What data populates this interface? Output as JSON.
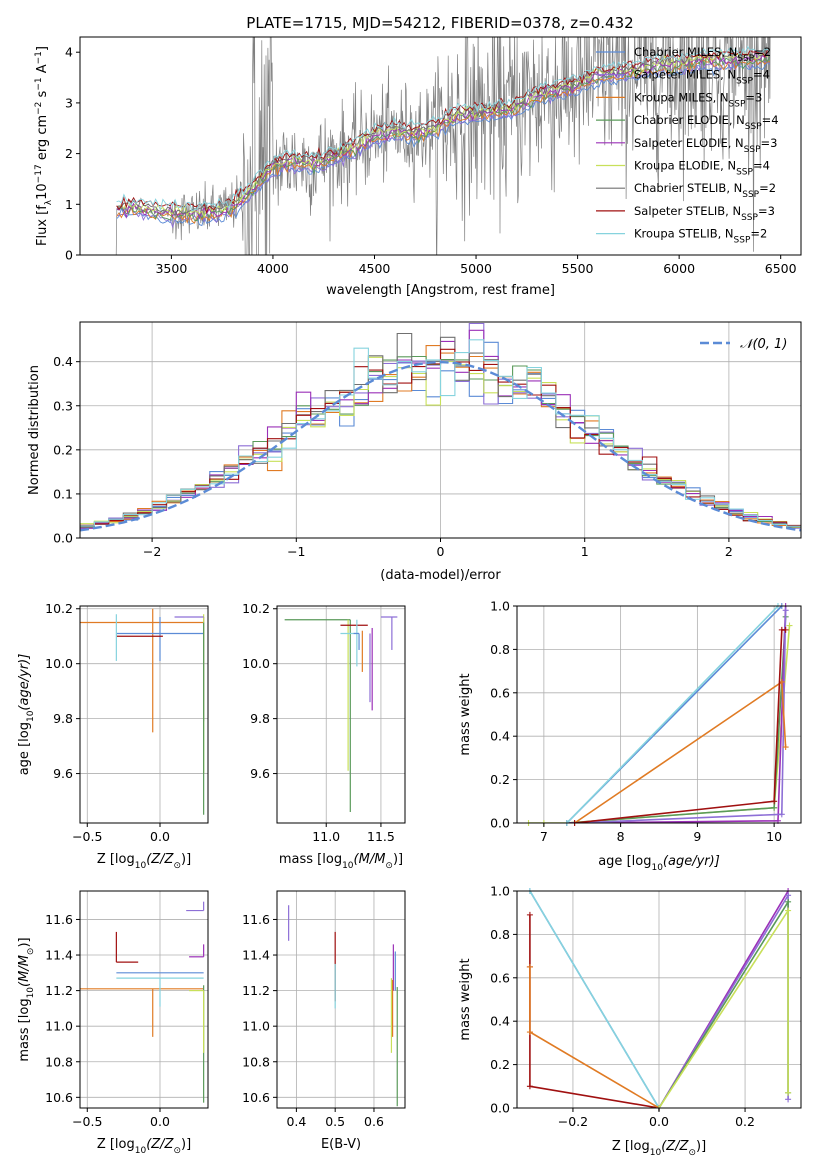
{
  "figure_title": "PLATE=1715, MJD=54212, FIBERID=0378, z=0.432",
  "colors": {
    "Chabrier MILES": "#5b8bd6",
    "Salpeter MILES": "#8d6fd6",
    "Kroupa MILES": "#e07b24",
    "Chabrier ELODIE": "#5a9a5a",
    "Salpeter ELODIE": "#9b30b8",
    "Kroupa ELODIE": "#c8e05a",
    "Chabrier STELIB": "#707070",
    "Salpeter STELIB": "#a01010",
    "Kroupa STELIB": "#86d3de",
    "data": "#808080",
    "normal": "#5b8bd6"
  },
  "chart_data": [
    {
      "id": "spectrum",
      "type": "line",
      "xlabel": "wavelength [Angstrom, rest frame]",
      "ylabel_parts": [
        "Flux [f",
        "λ",
        "10",
        "−17",
        " erg cm",
        "−2",
        " s",
        "−1",
        " A",
        "−1",
        "]"
      ],
      "xlim": [
        3050,
        6600
      ],
      "ylim": [
        0,
        4.3
      ],
      "xticks": [
        3500,
        4000,
        4500,
        5000,
        5500,
        6000,
        6500
      ],
      "yticks": [
        0,
        1,
        2,
        3,
        4
      ],
      "legend_position": "upper right",
      "legend": [
        {
          "model": "Chabrier MILES",
          "text": "Chabrier MILES, N",
          "sub": "SSP",
          "eq": "=2"
        },
        {
          "model": "Salpeter MILES",
          "text": "Salpeter MILES, N",
          "sub": "SSP",
          "eq": "=4"
        },
        {
          "model": "Kroupa MILES",
          "text": "Kroupa MILES, N",
          "sub": "SSP",
          "eq": "=3"
        },
        {
          "model": "Chabrier ELODIE",
          "text": "Chabrier ELODIE, N",
          "sub": "SSP",
          "eq": "=4"
        },
        {
          "model": "Salpeter ELODIE",
          "text": "Salpeter ELODIE, N",
          "sub": "SSP",
          "eq": "=3"
        },
        {
          "model": "Kroupa ELODIE",
          "text": "Kroupa ELODIE, N",
          "sub": "SSP",
          "eq": "=4"
        },
        {
          "model": "Chabrier STELIB",
          "text": "Chabrier STELIB, N",
          "sub": "SSP",
          "eq": "=2"
        },
        {
          "model": "Salpeter STELIB",
          "text": "Salpeter STELIB, N",
          "sub": "SSP",
          "eq": "=3"
        },
        {
          "model": "Kroupa STELIB",
          "text": "Kroupa STELIB, N",
          "sub": "SSP",
          "eq": "=2"
        }
      ],
      "continuum": {
        "x": [
          3230,
          3300,
          3400,
          3500,
          3600,
          3700,
          3800,
          3900,
          4000,
          4100,
          4200,
          4300,
          4400,
          4500,
          4600,
          4700,
          4800,
          4900,
          5000,
          5100,
          5200,
          5300,
          5400,
          5500,
          5600,
          5700,
          5800,
          5900,
          6000,
          6100,
          6200,
          6300,
          6400,
          6450
        ],
        "y": [
          0.9,
          0.95,
          0.88,
          0.82,
          0.8,
          0.85,
          0.95,
          1.3,
          1.75,
          1.85,
          1.8,
          1.95,
          2.1,
          2.35,
          2.45,
          2.4,
          2.5,
          2.75,
          2.8,
          2.85,
          2.9,
          3.15,
          3.25,
          3.35,
          3.55,
          3.6,
          3.65,
          3.75,
          3.75,
          3.85,
          3.85,
          3.85,
          3.9,
          3.9
        ]
      },
      "data_noise_onset": 3500
    },
    {
      "id": "residuals",
      "type": "histogram",
      "xlabel": "(data-model)/error",
      "ylabel": "Normed distribution",
      "xlim": [
        -2.5,
        2.5
      ],
      "ylim": [
        0,
        0.49
      ],
      "xticks": [
        -2,
        -1,
        0,
        1,
        2
      ],
      "yticks": [
        0.0,
        0.1,
        0.2,
        0.3,
        0.4
      ],
      "legend_position": "upper right",
      "legend_label": "𝒩(0, 1)",
      "bin_width": 0.1,
      "bin_start": -2.5,
      "bins": 50
    },
    {
      "id": "age_vs_Z",
      "type": "scatter",
      "xlabel_parts": [
        "Z [log",
        "10",
        "(Z/Z",
        "⊙",
        ")]"
      ],
      "ylabel_parts": [
        "age  [log",
        "10",
        "(age/yr)]"
      ],
      "xlim": [
        -0.55,
        0.33
      ],
      "ylim": [
        9.42,
        10.21
      ],
      "xticks": [
        -0.5,
        0.0
      ],
      "xticklabels": [
        "−0.5",
        "0.0"
      ],
      "yticks": [
        9.6,
        9.8,
        10.0,
        10.2
      ],
      "yticklabels": [
        "9.6",
        "9.8",
        "10.0",
        "10.2"
      ],
      "points": [
        {
          "model": "Kroupa MILES",
          "x": -0.05,
          "y": 10.15,
          "xerr": [
            0.5,
            0.35
          ],
          "yerr": [
            0.4,
            0.05
          ]
        },
        {
          "model": "Chabrier MILES",
          "x": 0.0,
          "y": 10.11,
          "xerr": [
            0.3,
            0.3
          ],
          "yerr": [
            0.1,
            0.06
          ]
        },
        {
          "model": "Salpeter STELIB",
          "x": -0.1,
          "y": 10.1,
          "xerr": [
            0.2,
            0.12
          ],
          "yerr": [
            0.0,
            0.0
          ]
        },
        {
          "model": "Kroupa STELIB",
          "x": -0.3,
          "y": 10.11,
          "xerr": [
            0.0,
            0.0
          ],
          "yerr": [
            0.1,
            0.07
          ]
        },
        {
          "model": "Salpeter ELODIE",
          "x": 0.3,
          "y": 10.14,
          "xerr": [
            0.0,
            0.0
          ],
          "yerr": [
            0.35,
            0.03
          ]
        },
        {
          "model": "Kroupa ELODIE",
          "x": 0.3,
          "y": 10.15,
          "xerr": [
            0.0,
            0.0
          ],
          "yerr": [
            0.55,
            0.03
          ]
        },
        {
          "model": "Chabrier ELODIE",
          "x": 0.3,
          "y": 10.1,
          "xerr": [
            0.0,
            0.0
          ],
          "yerr": [
            0.65,
            0.05
          ]
        },
        {
          "model": "Salpeter MILES",
          "x": 0.2,
          "y": 10.17,
          "xerr": [
            0.1,
            0.1
          ],
          "yerr": [
            0.0,
            0.0
          ]
        }
      ]
    },
    {
      "id": "age_vs_mass",
      "type": "scatter",
      "xlabel_parts": [
        "mass [log",
        "10",
        "(M/M",
        "⊙",
        ")]"
      ],
      "xlim": [
        10.55,
        11.72
      ],
      "ylim": [
        9.42,
        10.21
      ],
      "xticks": [
        11.0,
        11.5
      ],
      "xticklabels": [
        "11.0",
        "11.5"
      ],
      "yticks": [
        9.6,
        9.8,
        10.0,
        10.2
      ],
      "yticklabels": [
        "9.6",
        "9.8",
        "10.0",
        "10.2"
      ],
      "points": [
        {
          "model": "Chabrier ELODIE",
          "x": 11.22,
          "y": 10.16,
          "xerr": [
            0.6,
            0.0
          ],
          "yerr": [
            0.7,
            0.0
          ]
        },
        {
          "model": "Kroupa ELODIE",
          "x": 11.2,
          "y": 10.16,
          "xerr": [
            0.0,
            0.0
          ],
          "yerr": [
            0.55,
            0.0
          ]
        },
        {
          "model": "Salpeter STELIB",
          "x": 11.38,
          "y": 10.14,
          "xerr": [
            0.25,
            0.0
          ],
          "yerr": [
            0.0,
            0.0
          ]
        },
        {
          "model": "Kroupa STELIB",
          "x": 11.28,
          "y": 10.11,
          "xerr": [
            0.15,
            0.02
          ],
          "yerr": [
            0.12,
            0.05
          ]
        },
        {
          "model": "Salpeter ELODIE",
          "x": 11.42,
          "y": 10.13,
          "xerr": [
            0.0,
            0.0
          ],
          "yerr": [
            0.3,
            0.0
          ]
        },
        {
          "model": "Kroupa MILES",
          "x": 11.33,
          "y": 10.12,
          "xerr": [
            0.0,
            0.0
          ],
          "yerr": [
            0.15,
            0.0
          ]
        },
        {
          "model": "Salpeter MILES",
          "x": 11.4,
          "y": 10.11,
          "xerr": [
            0.0,
            0.0
          ],
          "yerr": [
            0.25,
            0.0
          ]
        },
        {
          "model": "Chabrier MILES",
          "x": 11.3,
          "y": 10.11,
          "xerr": [
            0.05,
            0.0
          ],
          "yerr": [
            0.06,
            0.0
          ]
        },
        {
          "model": "Salpeter MILES",
          "x": 11.6,
          "y": 10.17,
          "xerr": [
            0.1,
            0.05
          ],
          "yerr": [
            0.12,
            0.0
          ]
        }
      ]
    },
    {
      "id": "massweight_vs_age",
      "type": "line",
      "xlabel_parts": [
        "age  [log",
        "10",
        "(age/yr)]"
      ],
      "ylabel": "mass weight",
      "xlim": [
        6.65,
        10.35
      ],
      "ylim": [
        0,
        1.0
      ],
      "xticks": [
        7,
        8,
        9,
        10
      ],
      "yticks": [
        0.0,
        0.2,
        0.4,
        0.6,
        0.8,
        1.0
      ],
      "series": [
        {
          "model": "Kroupa ELODIE",
          "x": [
            6.8,
            7.0,
            7.3,
            10.0,
            10.2
          ],
          "y": [
            0.0,
            0.0,
            0.0,
            0.07,
            0.91
          ]
        },
        {
          "model": "Chabrier ELODIE",
          "x": [
            7.3,
            10.0,
            10.15
          ],
          "y": [
            0.0,
            0.07,
            0.95
          ]
        },
        {
          "model": "Salpeter ELODIE",
          "x": [
            7.3,
            10.05,
            10.15
          ],
          "y": [
            0.0,
            0.01,
            1.0
          ]
        },
        {
          "model": "Salpeter MILES",
          "x": [
            7.4,
            10.1,
            10.15
          ],
          "y": [
            0.0,
            0.04,
            0.98
          ]
        },
        {
          "model": "Kroupa MILES",
          "x": [
            7.4,
            10.1,
            10.15
          ],
          "y": [
            0.0,
            0.65,
            0.35
          ]
        },
        {
          "model": "Chabrier MILES",
          "x": [
            7.3,
            10.1
          ],
          "y": [
            0.0,
            1.0
          ]
        },
        {
          "model": "Kroupa STELIB",
          "x": [
            7.3,
            10.05
          ],
          "y": [
            0.0,
            1.0
          ]
        },
        {
          "model": "Salpeter STELIB",
          "x": [
            7.4,
            10.0,
            10.1,
            10.15
          ],
          "y": [
            0.0,
            0.1,
            0.89,
            0.89
          ]
        }
      ]
    },
    {
      "id": "mass_vs_Z",
      "type": "scatter",
      "xlabel_parts": [
        "Z [log",
        "10",
        "(Z/Z",
        "⊙",
        ")]"
      ],
      "ylabel_parts": [
        "mass [log",
        "10",
        "(M/M",
        "⊙",
        ")]"
      ],
      "xlim": [
        -0.55,
        0.33
      ],
      "ylim": [
        10.54,
        11.76
      ],
      "xticks": [
        -0.5,
        0.0
      ],
      "xticklabels": [
        "−0.5",
        "0.0"
      ],
      "yticks": [
        10.6,
        10.8,
        11.0,
        11.2,
        11.4,
        11.6
      ],
      "yticklabels": [
        "10.6",
        "10.8",
        "11.0",
        "11.2",
        "11.4",
        "11.6"
      ],
      "points": [
        {
          "model": "Kroupa MILES",
          "x": -0.05,
          "y": 11.21,
          "xerr": [
            0.5,
            0.35
          ],
          "yerr": [
            0.27,
            0.0
          ]
        },
        {
          "model": "Salpeter STELIB",
          "x": -0.3,
          "y": 11.36,
          "xerr": [
            0.0,
            0.15
          ],
          "yerr": [
            0.0,
            0.17
          ]
        },
        {
          "model": "Chabrier MILES",
          "x": 0.0,
          "y": 11.3,
          "xerr": [
            0.3,
            0.3
          ],
          "yerr": [
            0.0,
            0.0
          ]
        },
        {
          "model": "Kroupa STELIB",
          "x": 0.0,
          "y": 11.27,
          "xerr": [
            0.3,
            0.3
          ],
          "yerr": [
            0.16,
            0.0
          ]
        },
        {
          "model": "Chabrier ELODIE",
          "x": 0.3,
          "y": 11.23,
          "xerr": [
            0.0,
            0.0
          ],
          "yerr": [
            0.66,
            0.0
          ]
        },
        {
          "model": "Kroupa ELODIE",
          "x": 0.3,
          "y": 11.2,
          "xerr": [
            0.1,
            0.0
          ],
          "yerr": [
            0.35,
            0.0
          ]
        },
        {
          "model": "Salpeter ELODIE",
          "x": 0.3,
          "y": 11.39,
          "xerr": [
            0.1,
            0.0
          ],
          "yerr": [
            0.0,
            0.07
          ]
        },
        {
          "model": "Salpeter MILES",
          "x": 0.3,
          "y": 11.65,
          "xerr": [
            0.12,
            0.0
          ],
          "yerr": [
            0.0,
            0.05
          ]
        }
      ]
    },
    {
      "id": "mass_vs_EBV",
      "type": "scatter",
      "xlabel": "E(B-V)",
      "xlim": [
        0.35,
        0.68
      ],
      "ylim": [
        10.54,
        11.76
      ],
      "xticks": [
        0.4,
        0.5,
        0.6
      ],
      "xticklabels": [
        "0.4",
        "0.5",
        "0.6"
      ],
      "yticks": [
        10.6,
        10.8,
        11.0,
        11.2,
        11.4,
        11.6
      ],
      "yticklabels": [
        "10.6",
        "10.8",
        "11.0",
        "11.2",
        "11.4",
        "11.6"
      ],
      "points": [
        {
          "model": "Salpeter MILES",
          "x": 0.38,
          "y": 11.6,
          "yerr": [
            0.12,
            0.08
          ]
        },
        {
          "model": "Salpeter STELIB",
          "x": 0.5,
          "y": 11.36,
          "yerr": [
            0.22,
            0.17
          ]
        },
        {
          "model": "Kroupa STELIB",
          "x": 0.5,
          "y": 11.3,
          "yerr": [
            0.2,
            0.05
          ]
        },
        {
          "model": "Salpeter ELODIE",
          "x": 0.65,
          "y": 11.4,
          "yerr": [
            0.2,
            0.06
          ]
        },
        {
          "model": "Chabrier MILES",
          "x": 0.655,
          "y": 11.35,
          "yerr": [
            0.15,
            0.07
          ]
        },
        {
          "model": "Kroupa ELODIE",
          "x": 0.645,
          "y": 11.2,
          "yerr": [
            0.35,
            0.07
          ]
        },
        {
          "model": "Kroupa MILES",
          "x": 0.648,
          "y": 11.21,
          "yerr": [
            0.27,
            0.05
          ]
        },
        {
          "model": "Chabrier ELODIE",
          "x": 0.66,
          "y": 11.1,
          "yerr": [
            0.55,
            0.12
          ]
        }
      ]
    },
    {
      "id": "massweight_vs_Z",
      "type": "line",
      "xlabel_parts": [
        "Z [log",
        "10",
        "(Z/Z",
        "⊙",
        ")]"
      ],
      "ylabel": "mass weight",
      "xlim": [
        -0.33,
        0.33
      ],
      "ylim": [
        0,
        1.0
      ],
      "xticks": [
        -0.2,
        0.0,
        0.2
      ],
      "xticklabels": [
        "−0.2",
        "0.0",
        "0.2"
      ],
      "yticks": [
        0.0,
        0.2,
        0.4,
        0.6,
        0.8,
        1.0
      ],
      "series": [
        {
          "model": "Chabrier MILES",
          "x": [
            -0.3,
            0.0
          ],
          "y": [
            1.0,
            0.0
          ]
        },
        {
          "model": "Kroupa STELIB",
          "x": [
            -0.3,
            0.0
          ],
          "y": [
            1.0,
            0.0
          ]
        },
        {
          "model": "Salpeter STELIB",
          "x": [
            -0.3,
            -0.3,
            -0.3,
            0.0
          ],
          "y": [
            0.89,
            0.65,
            0.1,
            0.0
          ]
        },
        {
          "model": "Kroupa MILES",
          "x": [
            -0.3,
            -0.3,
            0.0
          ],
          "y": [
            0.65,
            0.35,
            0.0
          ]
        },
        {
          "model": "Salpeter ELODIE",
          "x": [
            0.0,
            0.3
          ],
          "y": [
            0.0,
            1.0
          ]
        },
        {
          "model": "Salpeter MILES",
          "x": [
            0.0,
            0.3,
            0.3
          ],
          "y": [
            0.0,
            0.98,
            0.04
          ]
        },
        {
          "model": "Chabrier ELODIE",
          "x": [
            0.0,
            0.3,
            0.3
          ],
          "y": [
            0.0,
            0.95,
            0.07
          ]
        },
        {
          "model": "Kroupa ELODIE",
          "x": [
            0.0,
            0.3,
            0.3
          ],
          "y": [
            0.0,
            0.91,
            0.07
          ]
        }
      ]
    }
  ]
}
